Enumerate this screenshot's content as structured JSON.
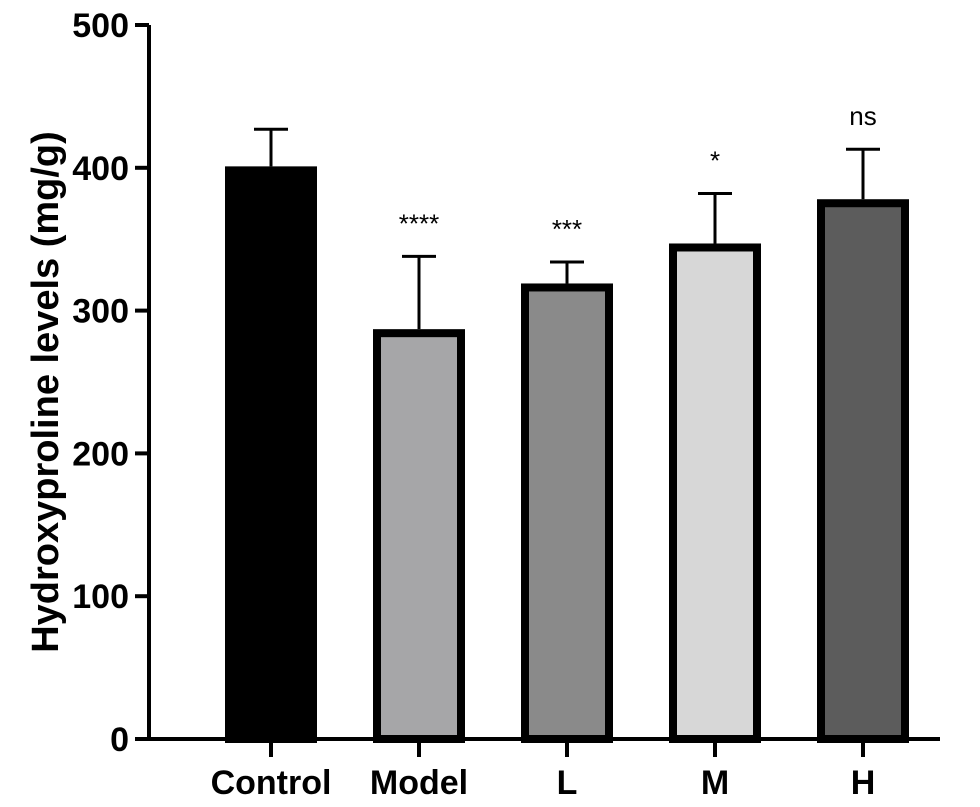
{
  "chart_data": {
    "type": "bar",
    "title": "",
    "xlabel": "",
    "ylabel": "Hydroxyproline levels (mg/g)",
    "ylim": [
      0,
      500
    ],
    "yticks": [
      0,
      100,
      200,
      300,
      400,
      500
    ],
    "categories": [
      "Control",
      "Model",
      "L",
      "M",
      "H"
    ],
    "values": [
      401,
      287,
      319,
      347,
      378
    ],
    "error_plus": [
      26,
      51,
      15,
      35,
      35
    ],
    "significance": [
      "",
      "****",
      "***",
      "*",
      "ns"
    ],
    "colors": [
      "#000000",
      "#a6a6a8",
      "#8a8a8a",
      "#d7d7d7",
      "#5c5c5c"
    ],
    "grid": false,
    "legend": "none"
  }
}
